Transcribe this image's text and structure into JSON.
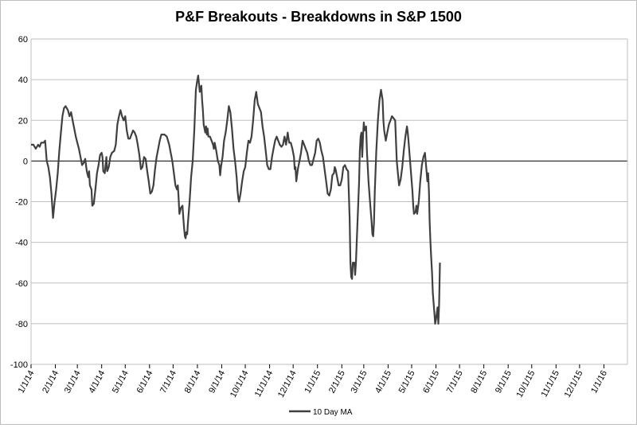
{
  "chart_data": {
    "type": "line",
    "title": "P&F Breakouts - Breakdowns in S&P 1500",
    "xlabel": "",
    "ylabel": "",
    "ylim": [
      -100,
      60
    ],
    "yticks": [
      -100,
      -80,
      -60,
      -40,
      -20,
      0,
      20,
      40,
      60
    ],
    "grid": true,
    "legend_position": "bottom",
    "categories": [
      "1/1/14",
      "2/1/14",
      "3/1/14",
      "4/1/14",
      "5/1/14",
      "6/1/14",
      "7/1/14",
      "8/1/14",
      "9/1/14",
      "10/1/14",
      "11/1/14",
      "12/1/14",
      "1/1/15",
      "2/1/15",
      "3/1/15",
      "4/1/15",
      "5/1/15",
      "6/1/15",
      "7/1/15",
      "8/1/15",
      "9/1/15",
      "10/1/15",
      "11/1/15",
      "12/1/15",
      "1/1/16"
    ],
    "category_day_offsets": [
      0,
      31,
      59,
      90,
      120,
      151,
      181,
      212,
      243,
      273,
      304,
      334,
      365,
      396,
      424,
      455,
      485,
      516,
      546,
      577,
      608,
      638,
      669,
      699,
      730
    ],
    "x_max_days": 760,
    "series": [
      {
        "name": "10 Day MA",
        "color": "#404040",
        "points": [
          [
            0,
            8
          ],
          [
            3,
            8
          ],
          [
            6,
            6
          ],
          [
            9,
            8
          ],
          [
            11,
            7
          ],
          [
            13,
            9
          ],
          [
            16,
            9
          ],
          [
            18,
            10
          ],
          [
            20,
            0
          ],
          [
            22,
            -3
          ],
          [
            24,
            -8
          ],
          [
            26,
            -16
          ],
          [
            28,
            -28
          ],
          [
            30,
            -20
          ],
          [
            32,
            -14
          ],
          [
            34,
            -6
          ],
          [
            36,
            5
          ],
          [
            38,
            14
          ],
          [
            40,
            22
          ],
          [
            42,
            26
          ],
          [
            44,
            27
          ],
          [
            47,
            25
          ],
          [
            49,
            22
          ],
          [
            51,
            24
          ],
          [
            53,
            20
          ],
          [
            55,
            16
          ],
          [
            57,
            12
          ],
          [
            59,
            9
          ],
          [
            61,
            6
          ],
          [
            63,
            2
          ],
          [
            65,
            -2
          ],
          [
            67,
            -1
          ],
          [
            69,
            1
          ],
          [
            71,
            -5
          ],
          [
            73,
            -8
          ],
          [
            74,
            -5
          ],
          [
            75,
            -12
          ],
          [
            77,
            -14
          ],
          [
            78,
            -22
          ],
          [
            80,
            -21
          ],
          [
            82,
            -14
          ],
          [
            84,
            -6
          ],
          [
            86,
            -2
          ],
          [
            88,
            3
          ],
          [
            90,
            4
          ],
          [
            91,
            2
          ],
          [
            92,
            -5
          ],
          [
            94,
            -6
          ],
          [
            95,
            -2
          ],
          [
            96,
            2
          ],
          [
            97,
            -5
          ],
          [
            99,
            -3
          ],
          [
            101,
            2
          ],
          [
            103,
            4
          ],
          [
            106,
            5
          ],
          [
            108,
            8
          ],
          [
            110,
            18
          ],
          [
            112,
            22
          ],
          [
            114,
            25
          ],
          [
            116,
            22
          ],
          [
            118,
            20
          ],
          [
            120,
            22
          ],
          [
            122,
            15
          ],
          [
            124,
            11
          ],
          [
            126,
            11
          ],
          [
            128,
            13
          ],
          [
            130,
            15
          ],
          [
            132,
            14
          ],
          [
            134,
            12
          ],
          [
            136,
            8
          ],
          [
            138,
            3
          ],
          [
            140,
            -4
          ],
          [
            142,
            -3
          ],
          [
            144,
            2
          ],
          [
            146,
            1
          ],
          [
            148,
            -5
          ],
          [
            150,
            -10
          ],
          [
            152,
            -16
          ],
          [
            154,
            -15
          ],
          [
            156,
            -12
          ],
          [
            158,
            -4
          ],
          [
            160,
            2
          ],
          [
            162,
            6
          ],
          [
            164,
            10
          ],
          [
            166,
            13
          ],
          [
            168,
            13
          ],
          [
            170,
            13
          ],
          [
            173,
            12
          ],
          [
            176,
            8
          ],
          [
            178,
            4
          ],
          [
            180,
            0
          ],
          [
            182,
            -6
          ],
          [
            184,
            -12
          ],
          [
            186,
            -14
          ],
          [
            187,
            -12
          ],
          [
            188,
            -18
          ],
          [
            189,
            -26
          ],
          [
            191,
            -23
          ],
          [
            193,
            -22
          ],
          [
            194,
            -28
          ],
          [
            195,
            -33
          ],
          [
            196,
            -37
          ],
          [
            197,
            -38
          ],
          [
            198,
            -35
          ],
          [
            199,
            -36
          ],
          [
            200,
            -30
          ],
          [
            202,
            -20
          ],
          [
            204,
            -8
          ],
          [
            206,
            0
          ],
          [
            208,
            15
          ],
          [
            210,
            35
          ],
          [
            212,
            40
          ],
          [
            213,
            42
          ],
          [
            214,
            38
          ],
          [
            215,
            34
          ],
          [
            216,
            36
          ],
          [
            217,
            37
          ],
          [
            218,
            30
          ],
          [
            219,
            25
          ],
          [
            220,
            18
          ],
          [
            221,
            16
          ],
          [
            222,
            14
          ],
          [
            223,
            17
          ],
          [
            224,
            13
          ],
          [
            225,
            16
          ],
          [
            226,
            12
          ],
          [
            228,
            12
          ],
          [
            230,
            10
          ],
          [
            232,
            8
          ],
          [
            233,
            6
          ],
          [
            234,
            9
          ],
          [
            236,
            5
          ],
          [
            238,
            0
          ],
          [
            240,
            -2
          ],
          [
            241,
            -7
          ],
          [
            242,
            -3
          ],
          [
            244,
            2
          ],
          [
            246,
            10
          ],
          [
            248,
            14
          ],
          [
            250,
            20
          ],
          [
            252,
            27
          ],
          [
            254,
            24
          ],
          [
            256,
            16
          ],
          [
            258,
            6
          ],
          [
            260,
            0
          ],
          [
            262,
            -8
          ],
          [
            263,
            -14
          ],
          [
            264,
            -18
          ],
          [
            265,
            -20
          ],
          [
            267,
            -16
          ],
          [
            269,
            -10
          ],
          [
            271,
            -5
          ],
          [
            273,
            -3
          ],
          [
            275,
            4
          ],
          [
            277,
            10
          ],
          [
            279,
            9
          ],
          [
            281,
            12
          ],
          [
            283,
            20
          ],
          [
            285,
            30
          ],
          [
            287,
            34
          ],
          [
            289,
            28
          ],
          [
            291,
            26
          ],
          [
            293,
            24
          ],
          [
            295,
            17
          ],
          [
            297,
            12
          ],
          [
            299,
            5
          ],
          [
            301,
            -2
          ],
          [
            303,
            -4
          ],
          [
            305,
            -4
          ],
          [
            307,
            2
          ],
          [
            309,
            6
          ],
          [
            311,
            10
          ],
          [
            313,
            12
          ],
          [
            315,
            10
          ],
          [
            317,
            8
          ],
          [
            319,
            7
          ],
          [
            321,
            8
          ],
          [
            323,
            12
          ],
          [
            325,
            8
          ],
          [
            327,
            14
          ],
          [
            329,
            9
          ],
          [
            331,
            9
          ],
          [
            333,
            6
          ],
          [
            335,
            2
          ],
          [
            336,
            -4
          ],
          [
            337,
            -3
          ],
          [
            338,
            -10
          ],
          [
            339,
            -7
          ],
          [
            340,
            -4
          ],
          [
            342,
            0
          ],
          [
            344,
            4
          ],
          [
            346,
            10
          ],
          [
            348,
            8
          ],
          [
            350,
            6
          ],
          [
            352,
            4
          ],
          [
            354,
            0
          ],
          [
            356,
            -2
          ],
          [
            358,
            -2
          ],
          [
            360,
            1
          ],
          [
            362,
            4
          ],
          [
            364,
            10
          ],
          [
            366,
            11
          ],
          [
            368,
            9
          ],
          [
            370,
            5
          ],
          [
            372,
            2
          ],
          [
            374,
            -4
          ],
          [
            376,
            -10
          ],
          [
            378,
            -16
          ],
          [
            380,
            -17
          ],
          [
            382,
            -14
          ],
          [
            384,
            -7
          ],
          [
            386,
            -6
          ],
          [
            387,
            -3
          ],
          [
            388,
            -4
          ],
          [
            390,
            -8
          ],
          [
            392,
            -12
          ],
          [
            394,
            -12
          ],
          [
            396,
            -9
          ],
          [
            398,
            -3
          ],
          [
            400,
            -2
          ],
          [
            402,
            -4
          ],
          [
            404,
            -5
          ],
          [
            406,
            -28
          ],
          [
            407,
            -50
          ],
          [
            408,
            -57
          ],
          [
            409,
            -58
          ],
          [
            410,
            -50
          ],
          [
            412,
            -50
          ],
          [
            413,
            -56
          ],
          [
            414,
            -50
          ],
          [
            416,
            -30
          ],
          [
            418,
            -10
          ],
          [
            419,
            5
          ],
          [
            420,
            12
          ],
          [
            421,
            14
          ],
          [
            422,
            2
          ],
          [
            423,
            12
          ],
          [
            424,
            19
          ],
          [
            425,
            15
          ],
          [
            426,
            16
          ],
          [
            427,
            17
          ],
          [
            428,
            5
          ],
          [
            430,
            -10
          ],
          [
            432,
            -20
          ],
          [
            434,
            -30
          ],
          [
            435,
            -36
          ],
          [
            436,
            -37
          ],
          [
            437,
            -30
          ],
          [
            438,
            -15
          ],
          [
            440,
            5
          ],
          [
            442,
            20
          ],
          [
            444,
            30
          ],
          [
            446,
            35
          ],
          [
            448,
            30
          ],
          [
            449,
            20
          ],
          [
            450,
            15
          ],
          [
            452,
            10
          ],
          [
            454,
            14
          ],
          [
            456,
            18
          ],
          [
            458,
            20
          ],
          [
            460,
            22
          ],
          [
            462,
            21
          ],
          [
            464,
            20
          ],
          [
            465,
            10
          ],
          [
            466,
            0
          ],
          [
            468,
            -8
          ],
          [
            469,
            -12
          ],
          [
            471,
            -9
          ],
          [
            473,
            -3
          ],
          [
            475,
            5
          ],
          [
            477,
            12
          ],
          [
            479,
            17
          ],
          [
            480,
            14
          ],
          [
            481,
            10
          ],
          [
            482,
            5
          ],
          [
            484,
            -5
          ],
          [
            486,
            -15
          ],
          [
            487,
            -22
          ],
          [
            488,
            -26
          ],
          [
            490,
            -25
          ],
          [
            491,
            -22
          ],
          [
            492,
            -26
          ],
          [
            494,
            -20
          ],
          [
            496,
            -10
          ],
          [
            498,
            -2
          ],
          [
            500,
            2
          ],
          [
            502,
            4
          ],
          [
            504,
            -5
          ],
          [
            505,
            -10
          ],
          [
            506,
            -6
          ],
          [
            507,
            -15
          ],
          [
            508,
            -30
          ],
          [
            509,
            -40
          ],
          [
            510,
            -48
          ],
          [
            511,
            -55
          ],
          [
            512,
            -65
          ],
          [
            513,
            -70
          ],
          [
            514,
            -75
          ],
          [
            515,
            -80
          ],
          [
            516,
            -78
          ],
          [
            517,
            -75
          ],
          [
            518,
            -72
          ],
          [
            519,
            -80
          ],
          [
            520,
            -70
          ],
          [
            521,
            -50
          ]
        ]
      }
    ]
  }
}
